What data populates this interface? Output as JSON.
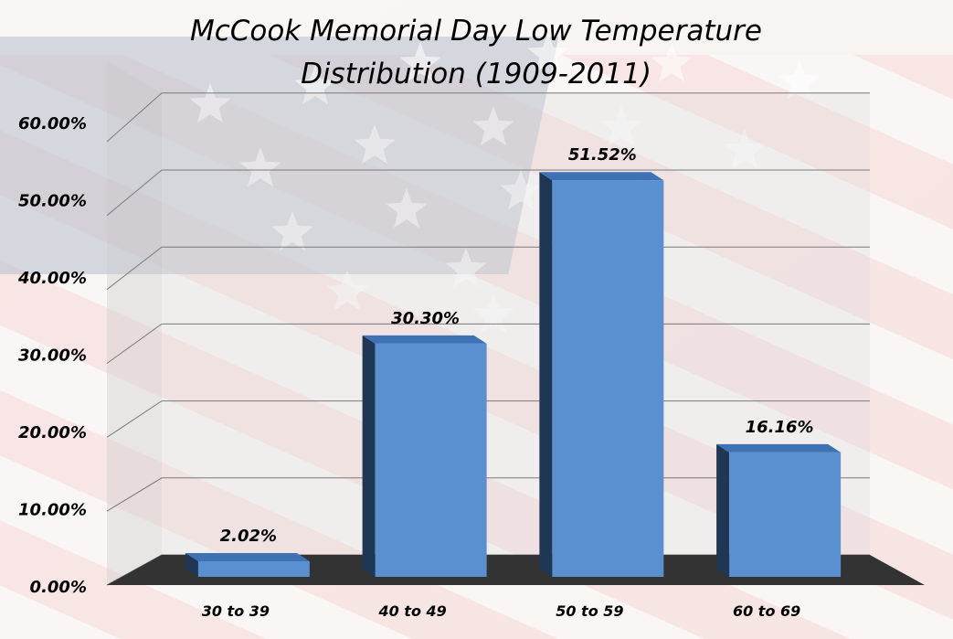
{
  "chart_data": {
    "type": "bar",
    "title": "McCook Memorial Day Low Temperature",
    "subtitle": "Distribution (1909-2011)",
    "categories": [
      "30 to 39",
      "40 to 49",
      "50 to 59",
      "60 to 69"
    ],
    "values": [
      2.02,
      30.3,
      51.52,
      16.16
    ],
    "data_labels": [
      "2.02%",
      "30.30%",
      "51.52%",
      "16.16%"
    ],
    "yticks": [
      "0.00%",
      "10.00%",
      "20.00%",
      "30.00%",
      "40.00%",
      "50.00%",
      "60.00%"
    ],
    "ylim": [
      0,
      60
    ],
    "xlabel": "",
    "ylabel": "",
    "grid": true,
    "legend": "none",
    "bar_color": "#5a8fd0",
    "bar_side_color": "#1f3654",
    "bar_top_color": "#3f72b4",
    "floor_color": "#333333"
  }
}
